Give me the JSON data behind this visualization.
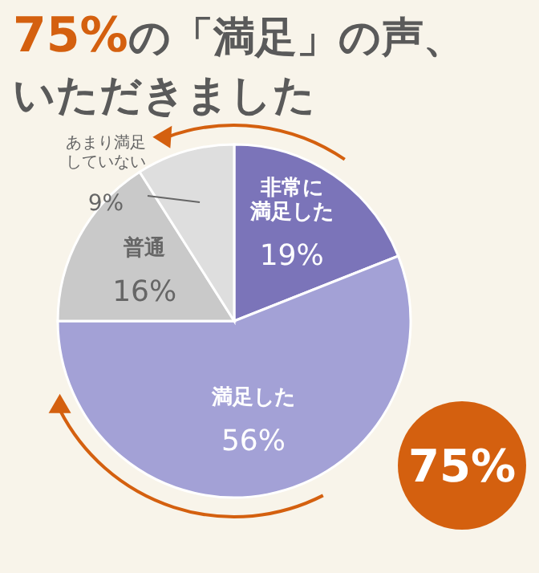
{
  "chart_data": {
    "type": "pie",
    "title": "75%の「満足」の声、いただきました",
    "categories": [
      "非常に満足した",
      "満足した",
      "普通",
      "あまり満足していない"
    ],
    "values": [
      19,
      56,
      16,
      9
    ],
    "value_labels": [
      "19%",
      "56%",
      "16%",
      "9%"
    ],
    "colors": [
      "#7b74b9",
      "#a3a1d6",
      "#c9c9c9",
      "#dedede"
    ],
    "annotations": [
      "75%"
    ]
  }
}
